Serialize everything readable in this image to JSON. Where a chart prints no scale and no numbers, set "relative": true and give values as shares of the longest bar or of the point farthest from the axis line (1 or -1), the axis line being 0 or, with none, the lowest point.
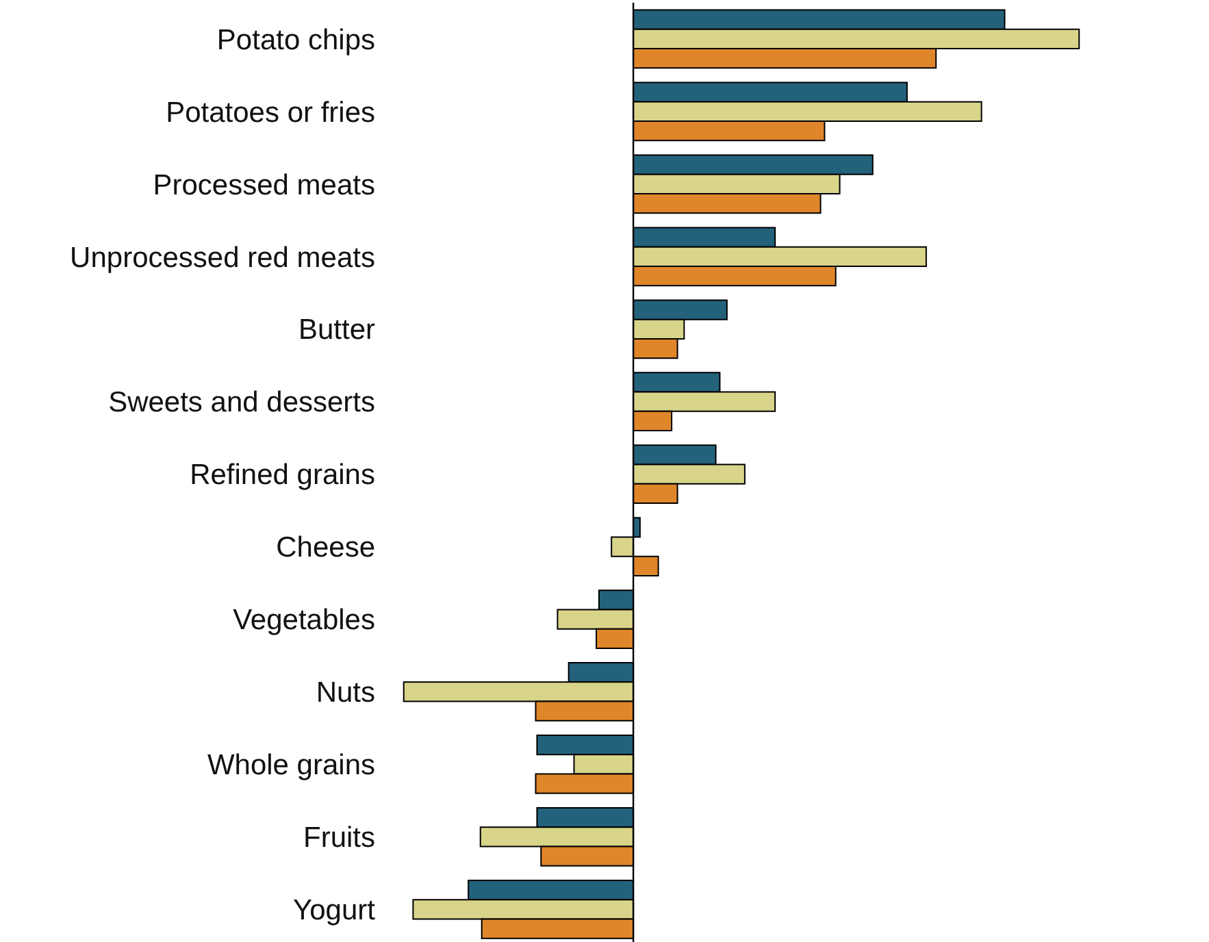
{
  "chart_data": {
    "type": "bar",
    "orientation": "horizontal",
    "relative": true,
    "categories": [
      "Potato chips",
      "Potatoes or fries",
      "Processed meats",
      "Unprocessed red meats",
      "Butter",
      "Sweets and desserts",
      "Refined grains",
      "Cheese",
      "Vegetables",
      "Nuts",
      "Whole grains",
      "Fruits",
      "Yogurt"
    ],
    "series": [
      {
        "color": "#24627c",
        "values": [
          0.833,
          0.614,
          0.537,
          0.318,
          0.21,
          0.194,
          0.185,
          0.015,
          -0.077,
          -0.145,
          -0.216,
          -0.216,
          -0.37
        ]
      },
      {
        "color": "#d8d48a",
        "values": [
          1,
          0.781,
          0.463,
          0.657,
          0.114,
          0.318,
          0.25,
          -0.049,
          -0.17,
          -0.515,
          -0.133,
          -0.343,
          -0.494
        ]
      },
      {
        "color": "#e0862a",
        "values": [
          0.679,
          0.429,
          0.42,
          0.454,
          0.099,
          0.086,
          0.099,
          0.056,
          -0.083,
          -0.219,
          -0.219,
          -0.207,
          -0.34
        ]
      }
    ]
  }
}
